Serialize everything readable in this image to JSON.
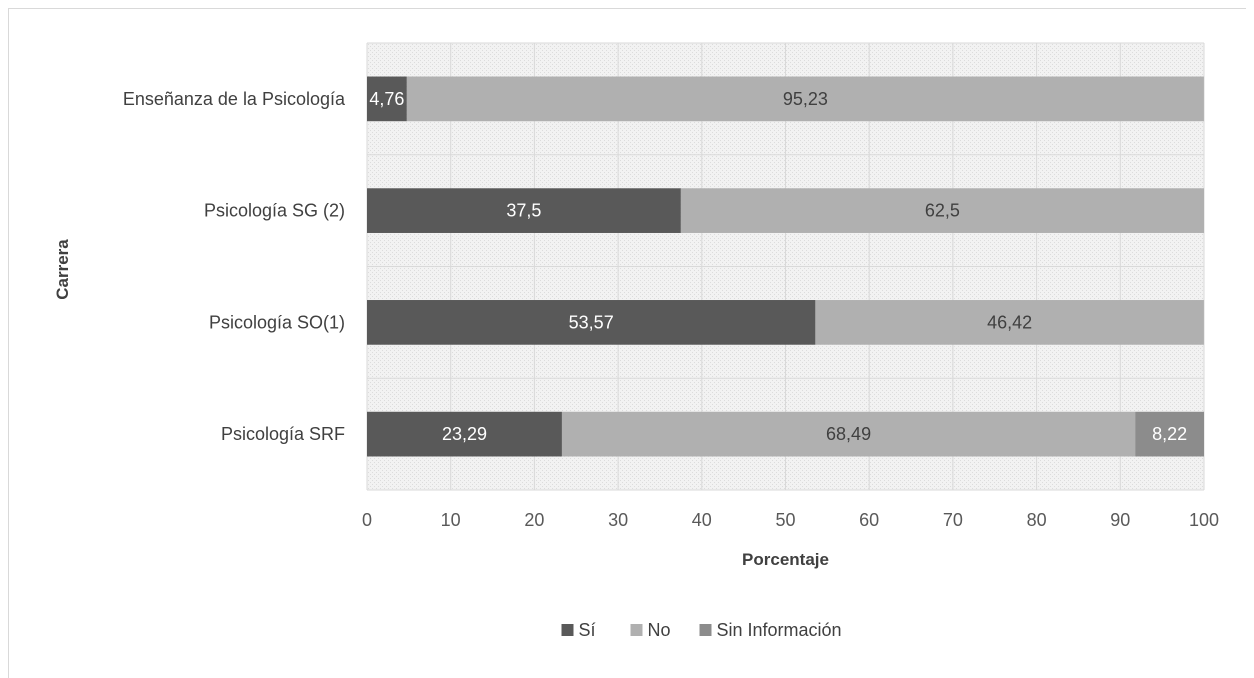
{
  "chart_data": {
    "type": "bar",
    "orientation": "horizontal",
    "stacked": true,
    "title": "",
    "xlabel": "Porcentaje",
    "ylabel": "Carrera",
    "xlim": [
      0,
      100
    ],
    "x_ticks": [
      "0",
      "10",
      "20",
      "30",
      "40",
      "50",
      "60",
      "70",
      "80",
      "90",
      "100"
    ],
    "categories": [
      "Enseñanza de la Psicología",
      "Psicología SG (2)",
      "Psicología SO(1)",
      "Psicología SRF"
    ],
    "series": [
      {
        "name": "Sí",
        "color": "#595959",
        "values": [
          4.76,
          37.5,
          53.57,
          23.29
        ],
        "labels": [
          "4,76",
          "37,5",
          "53,57",
          "23,29"
        ]
      },
      {
        "name": "No",
        "color": "#b0b0b0",
        "values": [
          95.23,
          62.5,
          46.42,
          68.49
        ],
        "labels": [
          "95,23",
          "62,5",
          "46,42",
          "68,49"
        ]
      },
      {
        "name": "Sin Información",
        "color": "#8c8c8c",
        "values": [
          0,
          0,
          0,
          8.22
        ],
        "labels": [
          "",
          "",
          "",
          "8,22"
        ]
      }
    ],
    "grid": true,
    "legend_position": "bottom"
  }
}
